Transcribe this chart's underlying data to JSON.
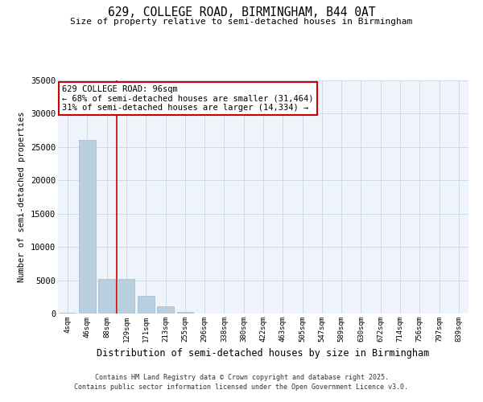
{
  "title": "629, COLLEGE ROAD, BIRMINGHAM, B44 0AT",
  "subtitle": "Size of property relative to semi-detached houses in Birmingham",
  "xlabel": "Distribution of semi-detached houses by size in Birmingham",
  "ylabel": "Number of semi-detached properties",
  "categories": [
    "4sqm",
    "46sqm",
    "88sqm",
    "129sqm",
    "171sqm",
    "213sqm",
    "255sqm",
    "296sqm",
    "338sqm",
    "380sqm",
    "422sqm",
    "463sqm",
    "505sqm",
    "547sqm",
    "589sqm",
    "630sqm",
    "672sqm",
    "714sqm",
    "756sqm",
    "797sqm",
    "839sqm"
  ],
  "values": [
    150,
    26100,
    5200,
    5200,
    2700,
    1100,
    200,
    50,
    10,
    3,
    1,
    0,
    0,
    0,
    0,
    0,
    0,
    0,
    0,
    0,
    0
  ],
  "bar_color": "#b8cfe0",
  "bar_edge_color": "#a0b8d0",
  "annotation_box_color": "#cc0000",
  "vline_index": 2,
  "annotation_line1": "629 COLLEGE ROAD: 96sqm",
  "annotation_line2": "← 68% of semi-detached houses are smaller (31,464)",
  "annotation_line3": "31% of semi-detached houses are larger (14,334) →",
  "ylim_max": 35000,
  "yticks": [
    0,
    5000,
    10000,
    15000,
    20000,
    25000,
    30000,
    35000
  ],
  "footer_line1": "Contains HM Land Registry data © Crown copyright and database right 2025.",
  "footer_line2": "Contains public sector information licensed under the Open Government Licence v3.0.",
  "background_color": "#ffffff",
  "grid_color": "#c8d8e8",
  "plot_bg_color": "#eef4fa"
}
